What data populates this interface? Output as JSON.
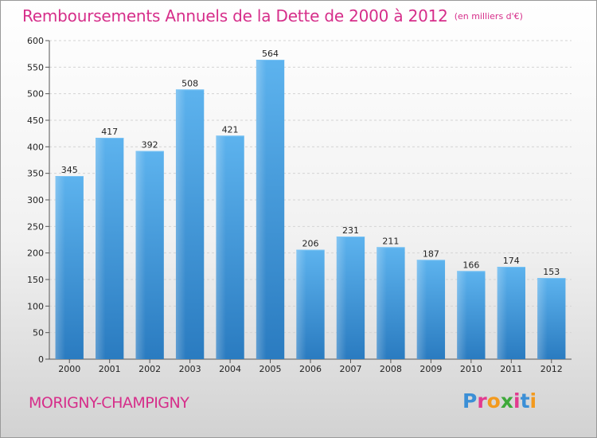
{
  "title": "Remboursements Annuels de la Dette de 2000 à 2012",
  "subtitle": "(en milliers d'€)",
  "city": "MORIGNY-CHAMPIGNY",
  "logo": {
    "letters": [
      "P",
      "r",
      "o",
      "x",
      "i",
      "t",
      "i"
    ],
    "colors": [
      "#3b8fd6",
      "#e23a8f",
      "#f39a1e",
      "#3ea93a",
      "#e23a8f",
      "#3b8fd6",
      "#f39a1e"
    ]
  },
  "colors": {
    "title": "#d62e8a",
    "bar": "#4aa3e3",
    "bar_dark": "#2f7fc4"
  },
  "chart_data": {
    "type": "bar",
    "categories": [
      "2000",
      "2001",
      "2002",
      "2003",
      "2004",
      "2005",
      "2006",
      "2007",
      "2008",
      "2009",
      "2010",
      "2011",
      "2012"
    ],
    "values": [
      345,
      417,
      392,
      508,
      421,
      564,
      206,
      231,
      211,
      187,
      166,
      174,
      153
    ],
    "ylim": [
      0,
      600
    ],
    "yticks": [
      0,
      50,
      100,
      150,
      200,
      250,
      300,
      350,
      400,
      450,
      500,
      550,
      600
    ],
    "grid": true,
    "data_labels": true
  }
}
